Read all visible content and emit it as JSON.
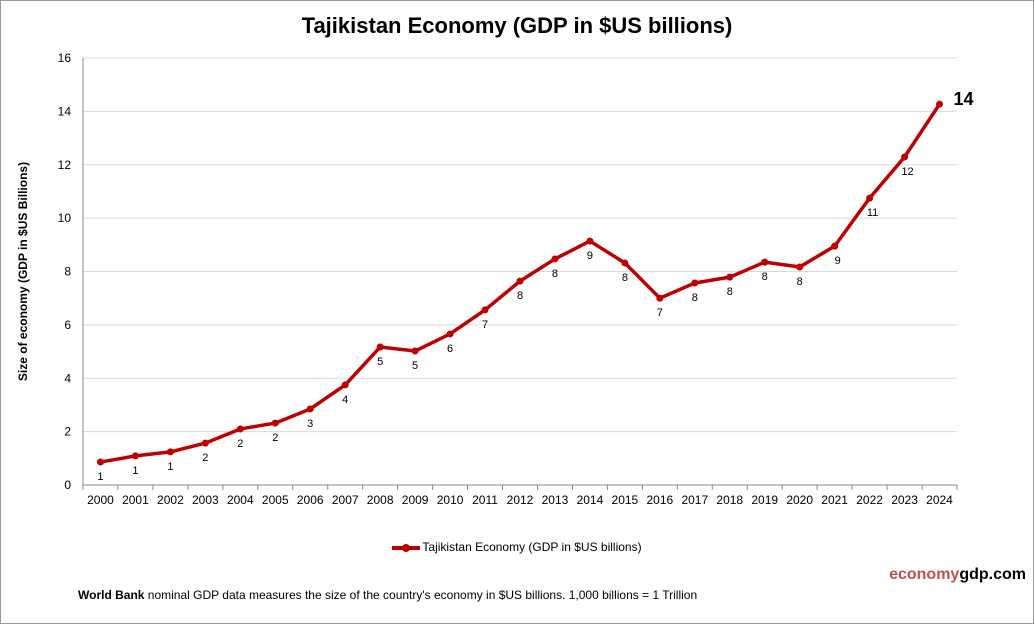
{
  "chart_data": {
    "type": "line",
    "title": "Tajikistan Economy (GDP in $US billions)",
    "ylabel": "Size of economy (GDP in $US Billions)",
    "xlabel": "",
    "ylim": [
      0,
      16
    ],
    "yticks": [
      0,
      2,
      4,
      6,
      8,
      10,
      12,
      14,
      16
    ],
    "grid": true,
    "legend": "bottom",
    "series": [
      {
        "name": "Tajikistan Economy (GDP in $US billions)",
        "color": "#c00000",
        "x": [
          "2000",
          "2001",
          "2002",
          "2003",
          "2004",
          "2005",
          "2006",
          "2007",
          "2008",
          "2009",
          "2010",
          "2011",
          "2012",
          "2013",
          "2014",
          "2015",
          "2016",
          "2017",
          "2018",
          "2019",
          "2020",
          "2021",
          "2022",
          "2023",
          "2024"
        ],
        "values": [
          0.86,
          1.09,
          1.24,
          1.57,
          2.1,
          2.32,
          2.85,
          3.75,
          5.17,
          5.02,
          5.66,
          6.56,
          7.64,
          8.47,
          9.14,
          8.32,
          7.0,
          7.57,
          7.79,
          8.35,
          8.17,
          8.95,
          10.75,
          12.29,
          14.27
        ],
        "labels": [
          "1",
          "1",
          "1",
          "2",
          "2",
          "2",
          "3",
          "4",
          "5",
          "5",
          "6",
          "7",
          "8",
          "8",
          "9",
          "8",
          "7",
          "8",
          "8",
          "8",
          "8",
          "9",
          "11",
          "12",
          "14"
        ]
      }
    ]
  },
  "footer": {
    "brand_a": "economy",
    "brand_b": "gdp.com",
    "note_bold": "World Bank",
    "note_text": " nominal GDP data  measures the size of the country's economy in $US billions. 1,000 billions = 1 Trillion"
  }
}
